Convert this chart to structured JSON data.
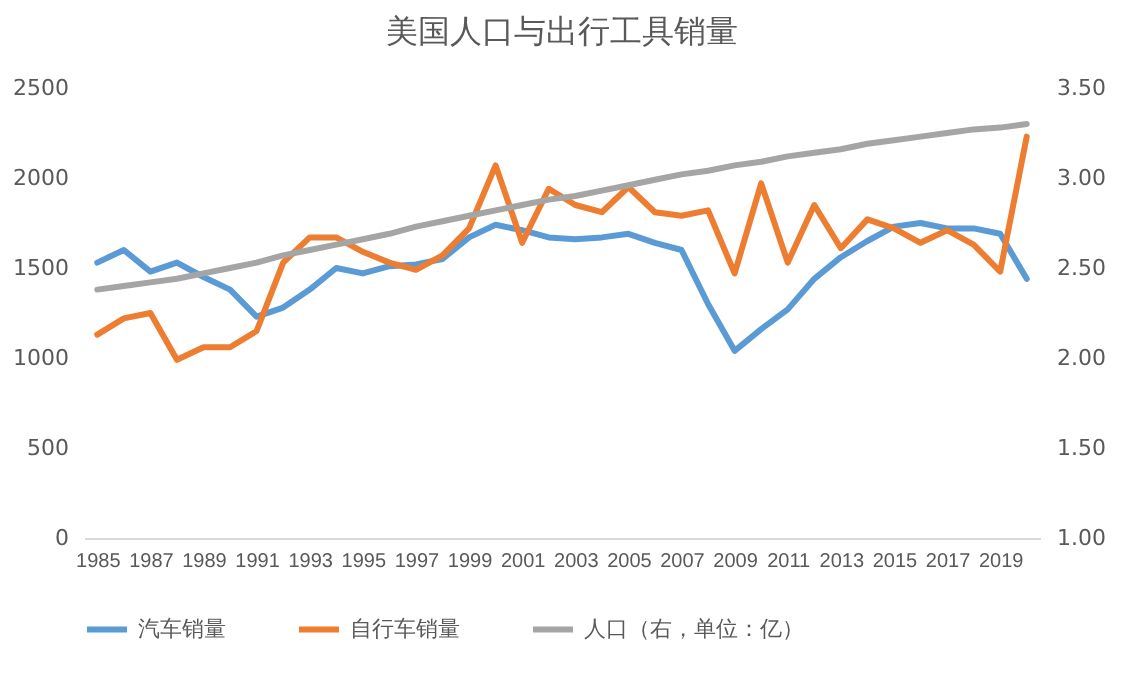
{
  "chart_data": {
    "type": "line",
    "title": "美国人口与出行工具销量",
    "categories": [
      "1985",
      null,
      "1987",
      null,
      "1989",
      null,
      "1991",
      null,
      "1993",
      null,
      "1995",
      null,
      "1997",
      null,
      "1999",
      null,
      "2001",
      null,
      "2003",
      null,
      "2005",
      null,
      "2007",
      null,
      "2009",
      null,
      "2011",
      null,
      "2013",
      null,
      "2015",
      null,
      "2017",
      null,
      "2019",
      null
    ],
    "series": [
      {
        "name": "汽车销量",
        "color": "#5b9bd5",
        "values": [
          1530,
          1600,
          1480,
          1530,
          1450,
          1380,
          1230,
          1280,
          1380,
          1500,
          1470,
          1510,
          1520,
          1550,
          1670,
          1740,
          1710,
          1670,
          1660,
          1670,
          1690,
          1640,
          1600,
          1300,
          1040,
          1160,
          1270,
          1440,
          1560,
          1650,
          1730,
          1750,
          1720,
          1720,
          1690,
          1440
        ]
      },
      {
        "name": "自行车销量",
        "color": "#ed7d31",
        "values": [
          1130,
          1220,
          1250,
          990,
          1060,
          1060,
          1150,
          1530,
          1670,
          1670,
          1590,
          1530,
          1490,
          1570,
          1720,
          2070,
          1640,
          1940,
          1850,
          1810,
          1950,
          1810,
          1790,
          1820,
          1470,
          1970,
          1530,
          1850,
          1610,
          1770,
          1720,
          1640,
          1710,
          1630,
          1480,
          2230
        ]
      },
      {
        "name": "人口（右，单位：亿）",
        "color": "#a5a5a5",
        "axis": "y2",
        "values": [
          2.38,
          2.4,
          2.42,
          2.44,
          2.47,
          2.5,
          2.53,
          2.57,
          2.6,
          2.63,
          2.66,
          2.69,
          2.73,
          2.76,
          2.79,
          2.82,
          2.85,
          2.88,
          2.9,
          2.93,
          2.96,
          2.99,
          3.02,
          3.04,
          3.07,
          3.09,
          3.12,
          3.14,
          3.16,
          3.19,
          3.21,
          3.23,
          3.25,
          3.27,
          3.28,
          3.3
        ]
      }
    ],
    "ylim": [
      0,
      2500
    ],
    "yticks": [
      0,
      500,
      1000,
      1500,
      2000,
      2500
    ],
    "y2lim": [
      1,
      3.5
    ],
    "y2ticks": [
      {
        "value": 1,
        "label": "1.00"
      },
      {
        "value": 1.5,
        "label": "1.50"
      },
      {
        "value": 2,
        "label": "2.00"
      },
      {
        "value": 2.5,
        "label": "2.50"
      },
      {
        "value": 3,
        "label": "3.00"
      },
      {
        "value": 3.5,
        "label": "3.50"
      }
    ],
    "grid": false,
    "legend": "bottom"
  }
}
